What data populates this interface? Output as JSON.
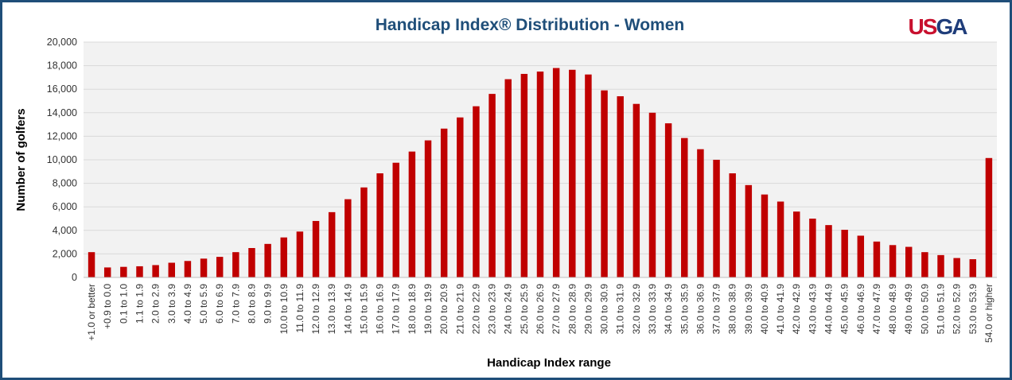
{
  "logo": {
    "text": "USGA",
    "color_us": "#c8102e",
    "color_ga": "#1f3d7a"
  },
  "colors": {
    "bar": "#c00000",
    "plot_bg": "#f2f2f2",
    "grid": "#d9d9d9",
    "title": "#1f4e79",
    "border": "#1f4e79"
  },
  "chart_data": {
    "type": "bar",
    "title": "Handicap Index® Distribution - Women",
    "xlabel": "Handicap Index range",
    "ylabel": "Number of golfers",
    "ylim": [
      0,
      20000
    ],
    "yticks": [
      "0",
      "2,000",
      "4,000",
      "6,000",
      "8,000",
      "10,000",
      "12,000",
      "14,000",
      "16,000",
      "18,000",
      "20,000"
    ],
    "grid": true,
    "legend": "none",
    "categories": [
      "+1.0 or better",
      "+0.9 to 0.0",
      "0.1 to 1.0",
      "1.1 to 1.9",
      "2.0 to 2.9",
      "3.0 to 3.9",
      "4.0 to 4.9",
      "5.0 to 5.9",
      "6.0 to 6.9",
      "7.0 to 7.9",
      "8.0 to 8.9",
      "9.0 to 9.9",
      "10.0 to 10.9",
      "11.0 to 11.9",
      "12.0 to 12.9",
      "13.0 to 13.9",
      "14.0 to 14.9",
      "15.0 to 15.9",
      "16.0 to 16.9",
      "17.0 to 17.9",
      "18.0 to 18.9",
      "19.0 to 19.9",
      "20.0 to 20.9",
      "21.0 to 21.9",
      "22.0 to 22.9",
      "23.0 to 23.9",
      "24.0 to 24.9",
      "25.0 to 25.9",
      "26.0 to 26.9",
      "27.0 to 27.9",
      "28.0 to 28.9",
      "29.0 to 29.9",
      "30.0 to 30.9",
      "31.0 to 31.9",
      "32.0 to 32.9",
      "33.0 to 33.9",
      "34.0 to 34.9",
      "35.0 to 35.9",
      "36.0 to 36.9",
      "37.0 to 37.9",
      "38.0 to 38.9",
      "39.0 to 39.9",
      "40.0 to 40.9",
      "41.0 to 41.9",
      "42.0 to 42.9",
      "43.0 to 43.9",
      "44.0 to 44.9",
      "45.0 to 45.9",
      "46.0 to 46.9",
      "47.0 to 47.9",
      "48.0 to 48.9",
      "49.0 to 49.9",
      "50.0 to 50.9",
      "51.0 to 51.9",
      "52.0 to 52.9",
      "53.0 to 53.9",
      "54.0 or higher"
    ],
    "values": [
      2150,
      850,
      900,
      950,
      1050,
      1250,
      1400,
      1600,
      1750,
      2150,
      2500,
      2850,
      3400,
      3900,
      4800,
      5550,
      6650,
      7650,
      8850,
      9750,
      10700,
      11650,
      12650,
      13600,
      14550,
      15600,
      16850,
      17300,
      17500,
      17800,
      17650,
      17250,
      15900,
      15400,
      14750,
      14000,
      13100,
      11850,
      10900,
      10000,
      8850,
      7850,
      7050,
      6450,
      5600,
      5000,
      4450,
      4050,
      3550,
      3050,
      2750,
      2600,
      2150,
      1900,
      1650,
      1550,
      10150
    ]
  }
}
